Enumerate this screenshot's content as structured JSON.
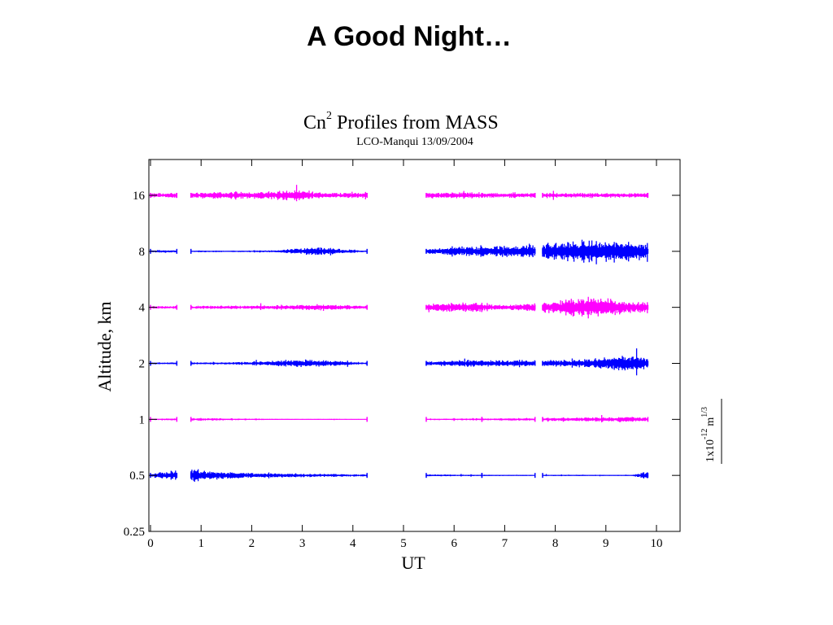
{
  "slide": {
    "title": "A Good Night…"
  },
  "chart_data": {
    "type": "line",
    "title_main": "Cn",
    "title_sup": "2",
    "title_rest": " Profiles from MASS",
    "subtitle": "LCO-Manqui 13/09/2004",
    "xlabel": "UT",
    "ylabel": "Altitude, km",
    "xlim": [
      0,
      10.5
    ],
    "x_ticks": [
      0,
      1,
      2,
      3,
      4,
      5,
      6,
      7,
      8,
      9,
      10
    ],
    "y_ticks": [
      "0.25",
      "0.5",
      "1",
      "2",
      "4",
      "8",
      "16"
    ],
    "y_log2": true,
    "ylim": [
      0.25,
      32
    ],
    "scale_label": {
      "base": "1x10",
      "exp": "-12",
      "unit": "m",
      "unit_exp": "1/3"
    },
    "gaps": [
      [
        0.55,
        0.8
      ],
      [
        4.3,
        5.45
      ]
    ],
    "series": [
      {
        "altitude": 16,
        "color": "#ff00ff",
        "segments": [
          [
            0.0,
            0.52
          ],
          [
            0.8,
            4.28
          ],
          [
            5.45,
            6.55
          ],
          [
            6.55,
            7.6
          ],
          [
            7.75,
            9.83
          ]
        ],
        "amplitude": [
          [
            0.0,
            0.3
          ],
          [
            1.0,
            0.45
          ],
          [
            2.0,
            0.5
          ],
          [
            2.7,
            0.75
          ],
          [
            3.5,
            0.4
          ],
          [
            5.5,
            0.4
          ],
          [
            6.2,
            0.45
          ],
          [
            7.0,
            0.35
          ],
          [
            8.5,
            0.35
          ],
          [
            9.8,
            0.3
          ]
        ]
      },
      {
        "altitude": 8,
        "color": "#0000ff",
        "segments": [
          [
            0.0,
            0.52
          ],
          [
            0.8,
            4.28
          ],
          [
            5.45,
            6.55
          ],
          [
            6.55,
            7.6
          ],
          [
            7.75,
            9.83
          ]
        ],
        "amplitude": [
          [
            0.0,
            0.2
          ],
          [
            1.5,
            0.1
          ],
          [
            2.5,
            0.15
          ],
          [
            3.2,
            0.6
          ],
          [
            3.6,
            0.45
          ],
          [
            4.2,
            0.1
          ],
          [
            5.5,
            0.4
          ],
          [
            6.2,
            0.7
          ],
          [
            7.0,
            0.8
          ],
          [
            7.6,
            0.9
          ],
          [
            8.0,
            1.3
          ],
          [
            9.0,
            1.6
          ],
          [
            9.8,
            1.2
          ]
        ]
      },
      {
        "altitude": 4,
        "color": "#ff00ff",
        "segments": [
          [
            0.0,
            0.52
          ],
          [
            0.8,
            4.28
          ],
          [
            5.45,
            6.55
          ],
          [
            6.55,
            7.6
          ],
          [
            7.75,
            9.83
          ]
        ],
        "amplitude": [
          [
            0.0,
            0.2
          ],
          [
            1.5,
            0.25
          ],
          [
            2.5,
            0.3
          ],
          [
            3.3,
            0.45
          ],
          [
            4.2,
            0.25
          ],
          [
            5.6,
            0.55
          ],
          [
            6.2,
            0.75
          ],
          [
            7.0,
            0.35
          ],
          [
            8.0,
            0.9
          ],
          [
            8.6,
            1.6
          ],
          [
            9.2,
            1.1
          ],
          [
            9.8,
            0.7
          ]
        ]
      },
      {
        "altitude": 2,
        "color": "#0000ff",
        "segments": [
          [
            0.0,
            0.52
          ],
          [
            0.8,
            4.28
          ],
          [
            5.45,
            6.55
          ],
          [
            6.55,
            7.6
          ],
          [
            7.75,
            9.83
          ]
        ],
        "amplitude": [
          [
            0.0,
            0.15
          ],
          [
            1.5,
            0.15
          ],
          [
            3.2,
            0.55
          ],
          [
            4.2,
            0.15
          ],
          [
            5.5,
            0.35
          ],
          [
            6.2,
            0.5
          ],
          [
            7.0,
            0.5
          ],
          [
            8.0,
            0.45
          ],
          [
            8.8,
            0.7
          ],
          [
            9.4,
            1.3
          ],
          [
            9.8,
            0.6
          ]
        ]
      },
      {
        "altitude": 1,
        "color": "#ff00ff",
        "segments": [
          [
            0.0,
            0.52
          ],
          [
            0.8,
            4.28
          ],
          [
            5.45,
            6.55
          ],
          [
            6.55,
            7.6
          ],
          [
            7.75,
            9.83
          ]
        ],
        "amplitude": [
          [
            0.0,
            0.1
          ],
          [
            1.0,
            0.2
          ],
          [
            2.5,
            0.08
          ],
          [
            4.2,
            0.05
          ],
          [
            5.5,
            0.1
          ],
          [
            6.5,
            0.15
          ],
          [
            8.0,
            0.25
          ],
          [
            9.5,
            0.4
          ],
          [
            9.8,
            0.25
          ]
        ]
      },
      {
        "altitude": 0.5,
        "color": "#0000ff",
        "segments": [
          [
            0.0,
            0.52
          ],
          [
            0.8,
            4.28
          ],
          [
            5.45,
            6.55
          ],
          [
            6.55,
            7.6
          ],
          [
            7.75,
            9.83
          ]
        ],
        "amplitude": [
          [
            0.0,
            0.3
          ],
          [
            0.9,
            0.9
          ],
          [
            1.3,
            0.6
          ],
          [
            2.0,
            0.35
          ],
          [
            3.0,
            0.3
          ],
          [
            4.2,
            0.15
          ],
          [
            5.5,
            0.15
          ],
          [
            6.5,
            0.1
          ],
          [
            7.5,
            0.08
          ],
          [
            8.2,
            0.1
          ],
          [
            9.5,
            0.08
          ],
          [
            9.8,
            0.6
          ]
        ]
      }
    ]
  }
}
